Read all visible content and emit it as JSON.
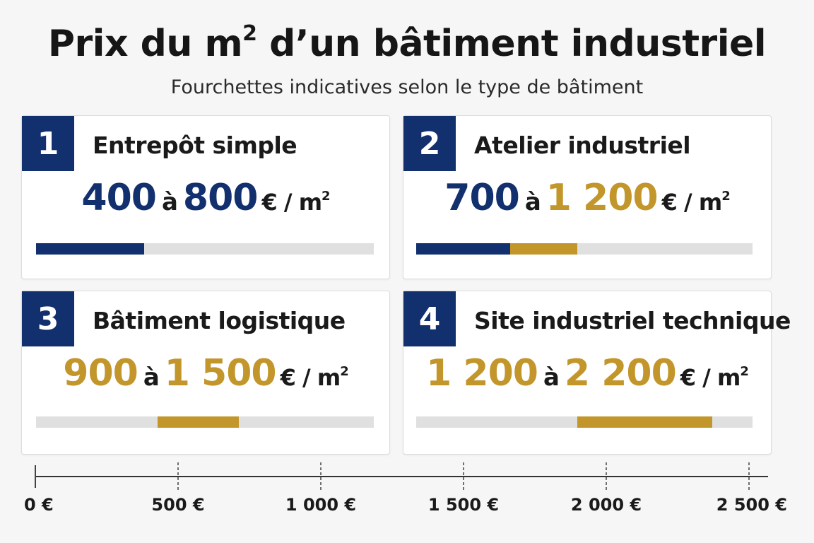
{
  "title": {
    "text": "Prix du m",
    "sup": "2",
    "rest": " d’un bâtiment industriel"
  },
  "subtitle": "Fourchettes indicatives selon le type de bâtiment",
  "colors": {
    "navy": "#122f6e",
    "gold": "#c2962a",
    "track": "#e0e0e0"
  },
  "cards": [
    {
      "num": "1",
      "name": "Entrepôt simple",
      "low_text": "400",
      "sep": "à",
      "high_text": "800",
      "unit": "€ / m",
      "unit_sup": "2",
      "low_color": "#122f6e",
      "high_color": "#122f6e"
    },
    {
      "num": "2",
      "name": "Atelier industriel",
      "low_text": "700",
      "sep": "à",
      "high_text": "1 200",
      "unit": "€ / m",
      "unit_sup": "2",
      "low_color": "#122f6e",
      "high_color": "#c2962a"
    },
    {
      "num": "3",
      "name": "Bâtiment logistique",
      "low_text": "900",
      "sep": "à",
      "high_text": "1 500",
      "unit": "€ / m",
      "unit_sup": "2",
      "low_color": "#c2962a",
      "high_color": "#c2962a"
    },
    {
      "num": "4",
      "name": "Site industriel technique",
      "low_text": "1 200",
      "sep": "à",
      "high_text": "2 200",
      "unit": "€ / m",
      "unit_sup": "2",
      "low_color": "#c2962a",
      "high_color": "#c2962a"
    }
  ],
  "chart_data": {
    "type": "bar",
    "orientation": "horizontal-range",
    "title": "Prix du m² d’un bâtiment industriel",
    "subtitle": "Fourchettes indicatives selon le type de bâtiment",
    "categories": [
      "Entrepôt simple",
      "Atelier industriel",
      "Bâtiment logistique",
      "Site industriel technique"
    ],
    "series": [
      {
        "category": "Entrepôt simple",
        "segments": [
          {
            "from": 0,
            "to": 800,
            "color": "#122f6e"
          }
        ]
      },
      {
        "category": "Atelier industriel",
        "segments": [
          {
            "from": 0,
            "to": 700,
            "color": "#122f6e"
          },
          {
            "from": 700,
            "to": 1200,
            "color": "#c2962a"
          }
        ]
      },
      {
        "category": "Bâtiment logistique",
        "segments": [
          {
            "from": 900,
            "to": 1500,
            "color": "#c2962a"
          }
        ]
      },
      {
        "category": "Site industriel technique",
        "segments": [
          {
            "from": 1200,
            "to": 2200,
            "color": "#c2962a"
          }
        ]
      }
    ],
    "xlim": [
      0,
      2500
    ],
    "ticks": [
      0,
      500,
      1000,
      1500,
      2000,
      2500
    ],
    "tick_labels": [
      "0 €",
      "500 €",
      "1 000 €",
      "1 500 €",
      "2 000 €",
      "2 500 €"
    ],
    "grid": false,
    "legend": "none"
  }
}
